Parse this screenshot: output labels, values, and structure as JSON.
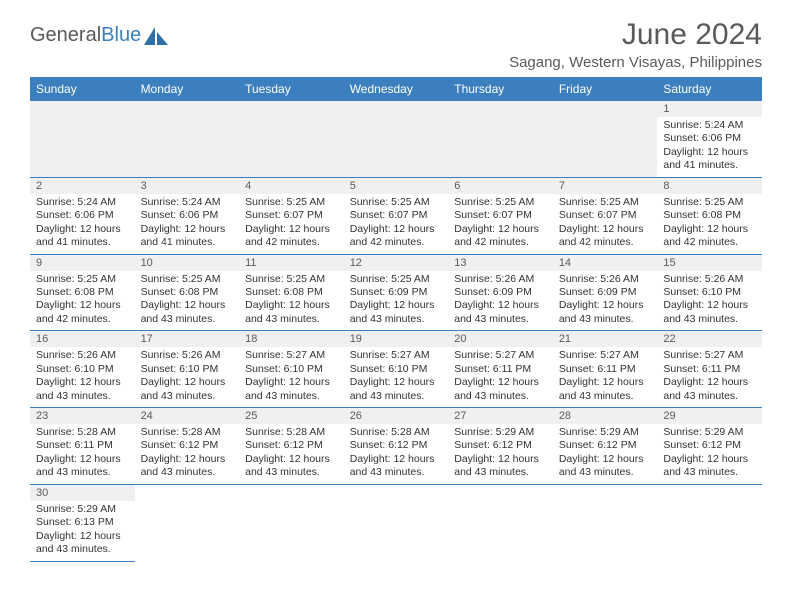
{
  "logo": {
    "textA": "General",
    "textB": "Blue"
  },
  "header": {
    "title": "June 2024",
    "location": "Sagang, Western Visayas, Philippines"
  },
  "dayNames": [
    "Sunday",
    "Monday",
    "Tuesday",
    "Wednesday",
    "Thursday",
    "Friday",
    "Saturday"
  ],
  "colors": {
    "headerBar": "#3b7fbf",
    "background": "#ffffff",
    "altRow": "#f0f0f0",
    "textMuted": "#5a5a5a",
    "text": "#333333"
  },
  "calendar": {
    "leadingBlanks": 6,
    "days": [
      {
        "n": 1,
        "sunrise": "5:24 AM",
        "sunset": "6:06 PM",
        "daylight": "12 hours and 41 minutes."
      },
      {
        "n": 2,
        "sunrise": "5:24 AM",
        "sunset": "6:06 PM",
        "daylight": "12 hours and 41 minutes."
      },
      {
        "n": 3,
        "sunrise": "5:24 AM",
        "sunset": "6:06 PM",
        "daylight": "12 hours and 41 minutes."
      },
      {
        "n": 4,
        "sunrise": "5:25 AM",
        "sunset": "6:07 PM",
        "daylight": "12 hours and 42 minutes."
      },
      {
        "n": 5,
        "sunrise": "5:25 AM",
        "sunset": "6:07 PM",
        "daylight": "12 hours and 42 minutes."
      },
      {
        "n": 6,
        "sunrise": "5:25 AM",
        "sunset": "6:07 PM",
        "daylight": "12 hours and 42 minutes."
      },
      {
        "n": 7,
        "sunrise": "5:25 AM",
        "sunset": "6:07 PM",
        "daylight": "12 hours and 42 minutes."
      },
      {
        "n": 8,
        "sunrise": "5:25 AM",
        "sunset": "6:08 PM",
        "daylight": "12 hours and 42 minutes."
      },
      {
        "n": 9,
        "sunrise": "5:25 AM",
        "sunset": "6:08 PM",
        "daylight": "12 hours and 42 minutes."
      },
      {
        "n": 10,
        "sunrise": "5:25 AM",
        "sunset": "6:08 PM",
        "daylight": "12 hours and 43 minutes."
      },
      {
        "n": 11,
        "sunrise": "5:25 AM",
        "sunset": "6:08 PM",
        "daylight": "12 hours and 43 minutes."
      },
      {
        "n": 12,
        "sunrise": "5:25 AM",
        "sunset": "6:09 PM",
        "daylight": "12 hours and 43 minutes."
      },
      {
        "n": 13,
        "sunrise": "5:26 AM",
        "sunset": "6:09 PM",
        "daylight": "12 hours and 43 minutes."
      },
      {
        "n": 14,
        "sunrise": "5:26 AM",
        "sunset": "6:09 PM",
        "daylight": "12 hours and 43 minutes."
      },
      {
        "n": 15,
        "sunrise": "5:26 AM",
        "sunset": "6:10 PM",
        "daylight": "12 hours and 43 minutes."
      },
      {
        "n": 16,
        "sunrise": "5:26 AM",
        "sunset": "6:10 PM",
        "daylight": "12 hours and 43 minutes."
      },
      {
        "n": 17,
        "sunrise": "5:26 AM",
        "sunset": "6:10 PM",
        "daylight": "12 hours and 43 minutes."
      },
      {
        "n": 18,
        "sunrise": "5:27 AM",
        "sunset": "6:10 PM",
        "daylight": "12 hours and 43 minutes."
      },
      {
        "n": 19,
        "sunrise": "5:27 AM",
        "sunset": "6:10 PM",
        "daylight": "12 hours and 43 minutes."
      },
      {
        "n": 20,
        "sunrise": "5:27 AM",
        "sunset": "6:11 PM",
        "daylight": "12 hours and 43 minutes."
      },
      {
        "n": 21,
        "sunrise": "5:27 AM",
        "sunset": "6:11 PM",
        "daylight": "12 hours and 43 minutes."
      },
      {
        "n": 22,
        "sunrise": "5:27 AM",
        "sunset": "6:11 PM",
        "daylight": "12 hours and 43 minutes."
      },
      {
        "n": 23,
        "sunrise": "5:28 AM",
        "sunset": "6:11 PM",
        "daylight": "12 hours and 43 minutes."
      },
      {
        "n": 24,
        "sunrise": "5:28 AM",
        "sunset": "6:12 PM",
        "daylight": "12 hours and 43 minutes."
      },
      {
        "n": 25,
        "sunrise": "5:28 AM",
        "sunset": "6:12 PM",
        "daylight": "12 hours and 43 minutes."
      },
      {
        "n": 26,
        "sunrise": "5:28 AM",
        "sunset": "6:12 PM",
        "daylight": "12 hours and 43 minutes."
      },
      {
        "n": 27,
        "sunrise": "5:29 AM",
        "sunset": "6:12 PM",
        "daylight": "12 hours and 43 minutes."
      },
      {
        "n": 28,
        "sunrise": "5:29 AM",
        "sunset": "6:12 PM",
        "daylight": "12 hours and 43 minutes."
      },
      {
        "n": 29,
        "sunrise": "5:29 AM",
        "sunset": "6:12 PM",
        "daylight": "12 hours and 43 minutes."
      },
      {
        "n": 30,
        "sunrise": "5:29 AM",
        "sunset": "6:13 PM",
        "daylight": "12 hours and 43 minutes."
      }
    ],
    "labels": {
      "sunrise": "Sunrise:",
      "sunset": "Sunset:",
      "daylight": "Daylight:"
    }
  }
}
